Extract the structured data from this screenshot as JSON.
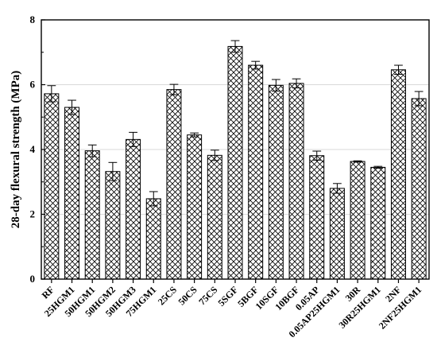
{
  "chart_data": {
    "type": "bar",
    "ylabel": "28-day flexural strength (MPa)",
    "xlabel": "",
    "ylim": [
      0,
      8
    ],
    "yticks": [
      "0",
      "2",
      "4",
      "6",
      "8"
    ],
    "grid": true,
    "categories": [
      "RF",
      "25HGM1",
      "50HGM1",
      "50HGM2",
      "50HGM3",
      "75HGM1",
      "25CS",
      "50CS",
      "75CS",
      "5SGF",
      "5BGF",
      "10SGF",
      "10BGF",
      "0.05AP",
      "0.05AP25HGM1",
      "30R",
      "30R25HGM1",
      "2NF",
      "2NF25HGM1"
    ],
    "values": [
      5.72,
      5.3,
      3.96,
      3.32,
      4.31,
      2.48,
      5.85,
      4.45,
      3.82,
      7.18,
      6.6,
      5.98,
      6.04,
      3.81,
      2.8,
      3.63,
      3.45,
      6.46,
      5.57
    ],
    "errors": [
      0.25,
      0.22,
      0.18,
      0.28,
      0.22,
      0.22,
      0.16,
      0.06,
      0.16,
      0.18,
      0.12,
      0.18,
      0.14,
      0.14,
      0.15,
      0.02,
      0.03,
      0.14,
      0.22
    ],
    "bar_fill": "cross-hatch",
    "bar_color": "#000000",
    "grid_color": "#d9d9d9"
  }
}
